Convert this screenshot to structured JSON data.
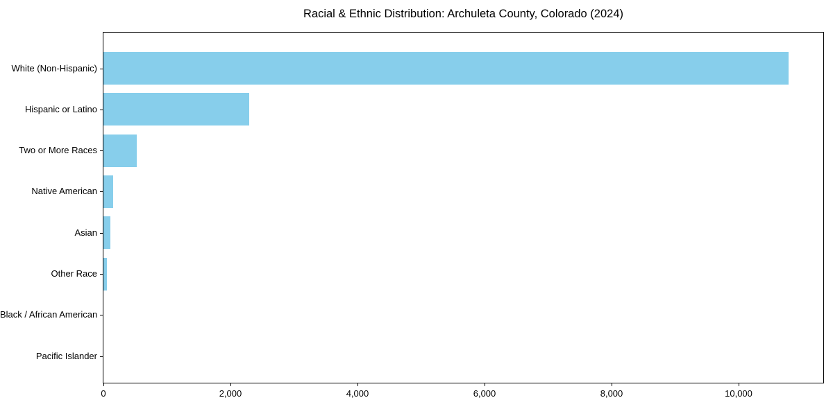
{
  "chart_data": {
    "type": "bar",
    "orientation": "horizontal",
    "title": "Racial & Ethnic Distribution: Archuleta County, Colorado (2024)",
    "xlabel": "",
    "ylabel": "",
    "categories": [
      "White (Non-Hispanic)",
      "Hispanic or Latino",
      "Two or More Races",
      "Native American",
      "Asian",
      "Other Race",
      "Black / African American",
      "Pacific Islander"
    ],
    "values": [
      10790,
      2300,
      525,
      150,
      105,
      55,
      0,
      0
    ],
    "xlim": [
      0,
      11333
    ],
    "x_ticks": [
      {
        "value": 0,
        "label": "0"
      },
      {
        "value": 2000,
        "label": "2,000"
      },
      {
        "value": 4000,
        "label": "4,000"
      },
      {
        "value": 6000,
        "label": "6,000"
      },
      {
        "value": 8000,
        "label": "8,000"
      },
      {
        "value": 10000,
        "label": "10,000"
      }
    ],
    "bar_color": "#87CEEB",
    "grid": false,
    "legend": "none"
  }
}
